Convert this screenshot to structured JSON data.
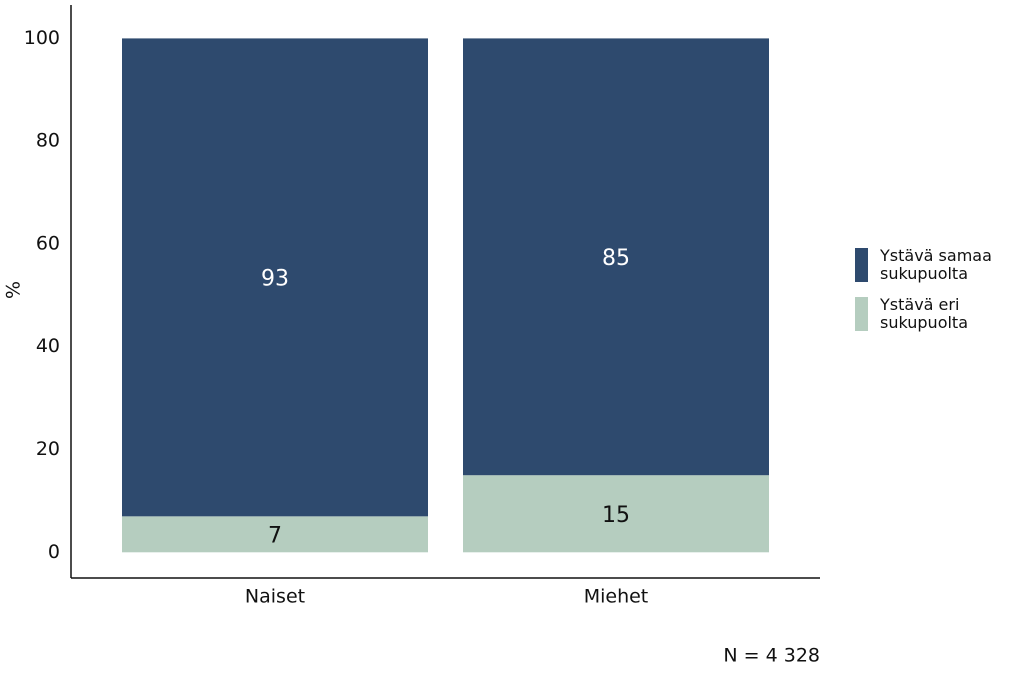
{
  "chart_data": {
    "type": "stacked-bar",
    "y_label": "%",
    "note": "N = 4 328",
    "categories": [
      "Naiset",
      "Miehet"
    ],
    "series": [
      {
        "name": "Ystävä eri sukupuolta",
        "color": "#b5cdbf",
        "values": [
          7,
          15
        ]
      },
      {
        "name": "Ystävä samaa sukupuolta",
        "color": "#2e4a6e",
        "values": [
          93,
          85
        ]
      }
    ],
    "ylim": [
      -5,
      106.5
    ],
    "yticks": [
      0,
      20,
      40,
      60,
      80,
      100
    ],
    "grid": false
  }
}
